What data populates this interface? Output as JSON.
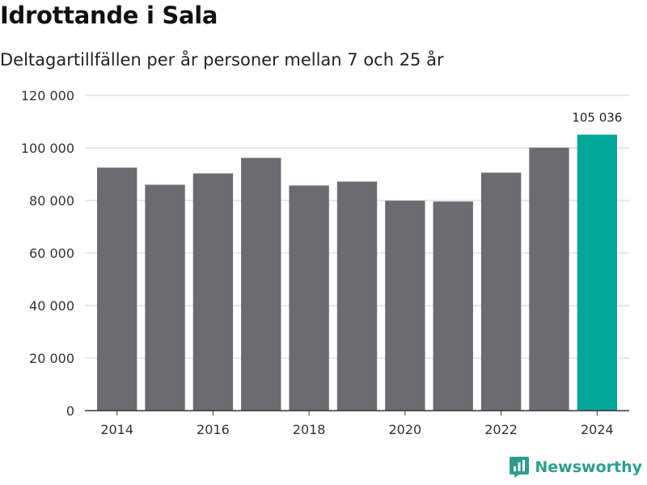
{
  "title": "Idrottande i Sala",
  "subtitle": "Deltagartillfällen per år personer mellan 7 och 25 år",
  "brand": {
    "name": "Newsworthy",
    "icon": "newsworthy-logo-icon"
  },
  "colors": {
    "bar": "#6c6b70",
    "highlight": "#00a698",
    "grid": "#d9d9d9",
    "axis": "#333333",
    "brand": "#2e9e8e"
  },
  "chart_data": {
    "type": "bar",
    "title": "Idrottande i Sala",
    "subtitle": "Deltagartillfällen per år personer mellan 7 och 25 år",
    "xlabel": "",
    "ylabel": "",
    "categories": [
      "2014",
      "2015",
      "2016",
      "2017",
      "2018",
      "2019",
      "2020",
      "2021",
      "2022",
      "2023",
      "2024"
    ],
    "values": [
      92500,
      86000,
      90300,
      96200,
      85700,
      87200,
      79900,
      79600,
      90600,
      100100,
      105036
    ],
    "highlight_index": 10,
    "ylim": [
      0,
      120000
    ],
    "yticks": [
      0,
      20000,
      40000,
      60000,
      80000,
      100000,
      120000
    ],
    "ytick_labels": [
      "0",
      "20 000",
      "40 000",
      "60 000",
      "80 000",
      "100 000",
      "120 000"
    ],
    "xtick_labels": [
      "2014",
      "",
      "2016",
      "",
      "2018",
      "",
      "2020",
      "",
      "2022",
      "",
      "2024"
    ],
    "annotation": {
      "index": 10,
      "text": "105 036"
    },
    "grid": true
  }
}
